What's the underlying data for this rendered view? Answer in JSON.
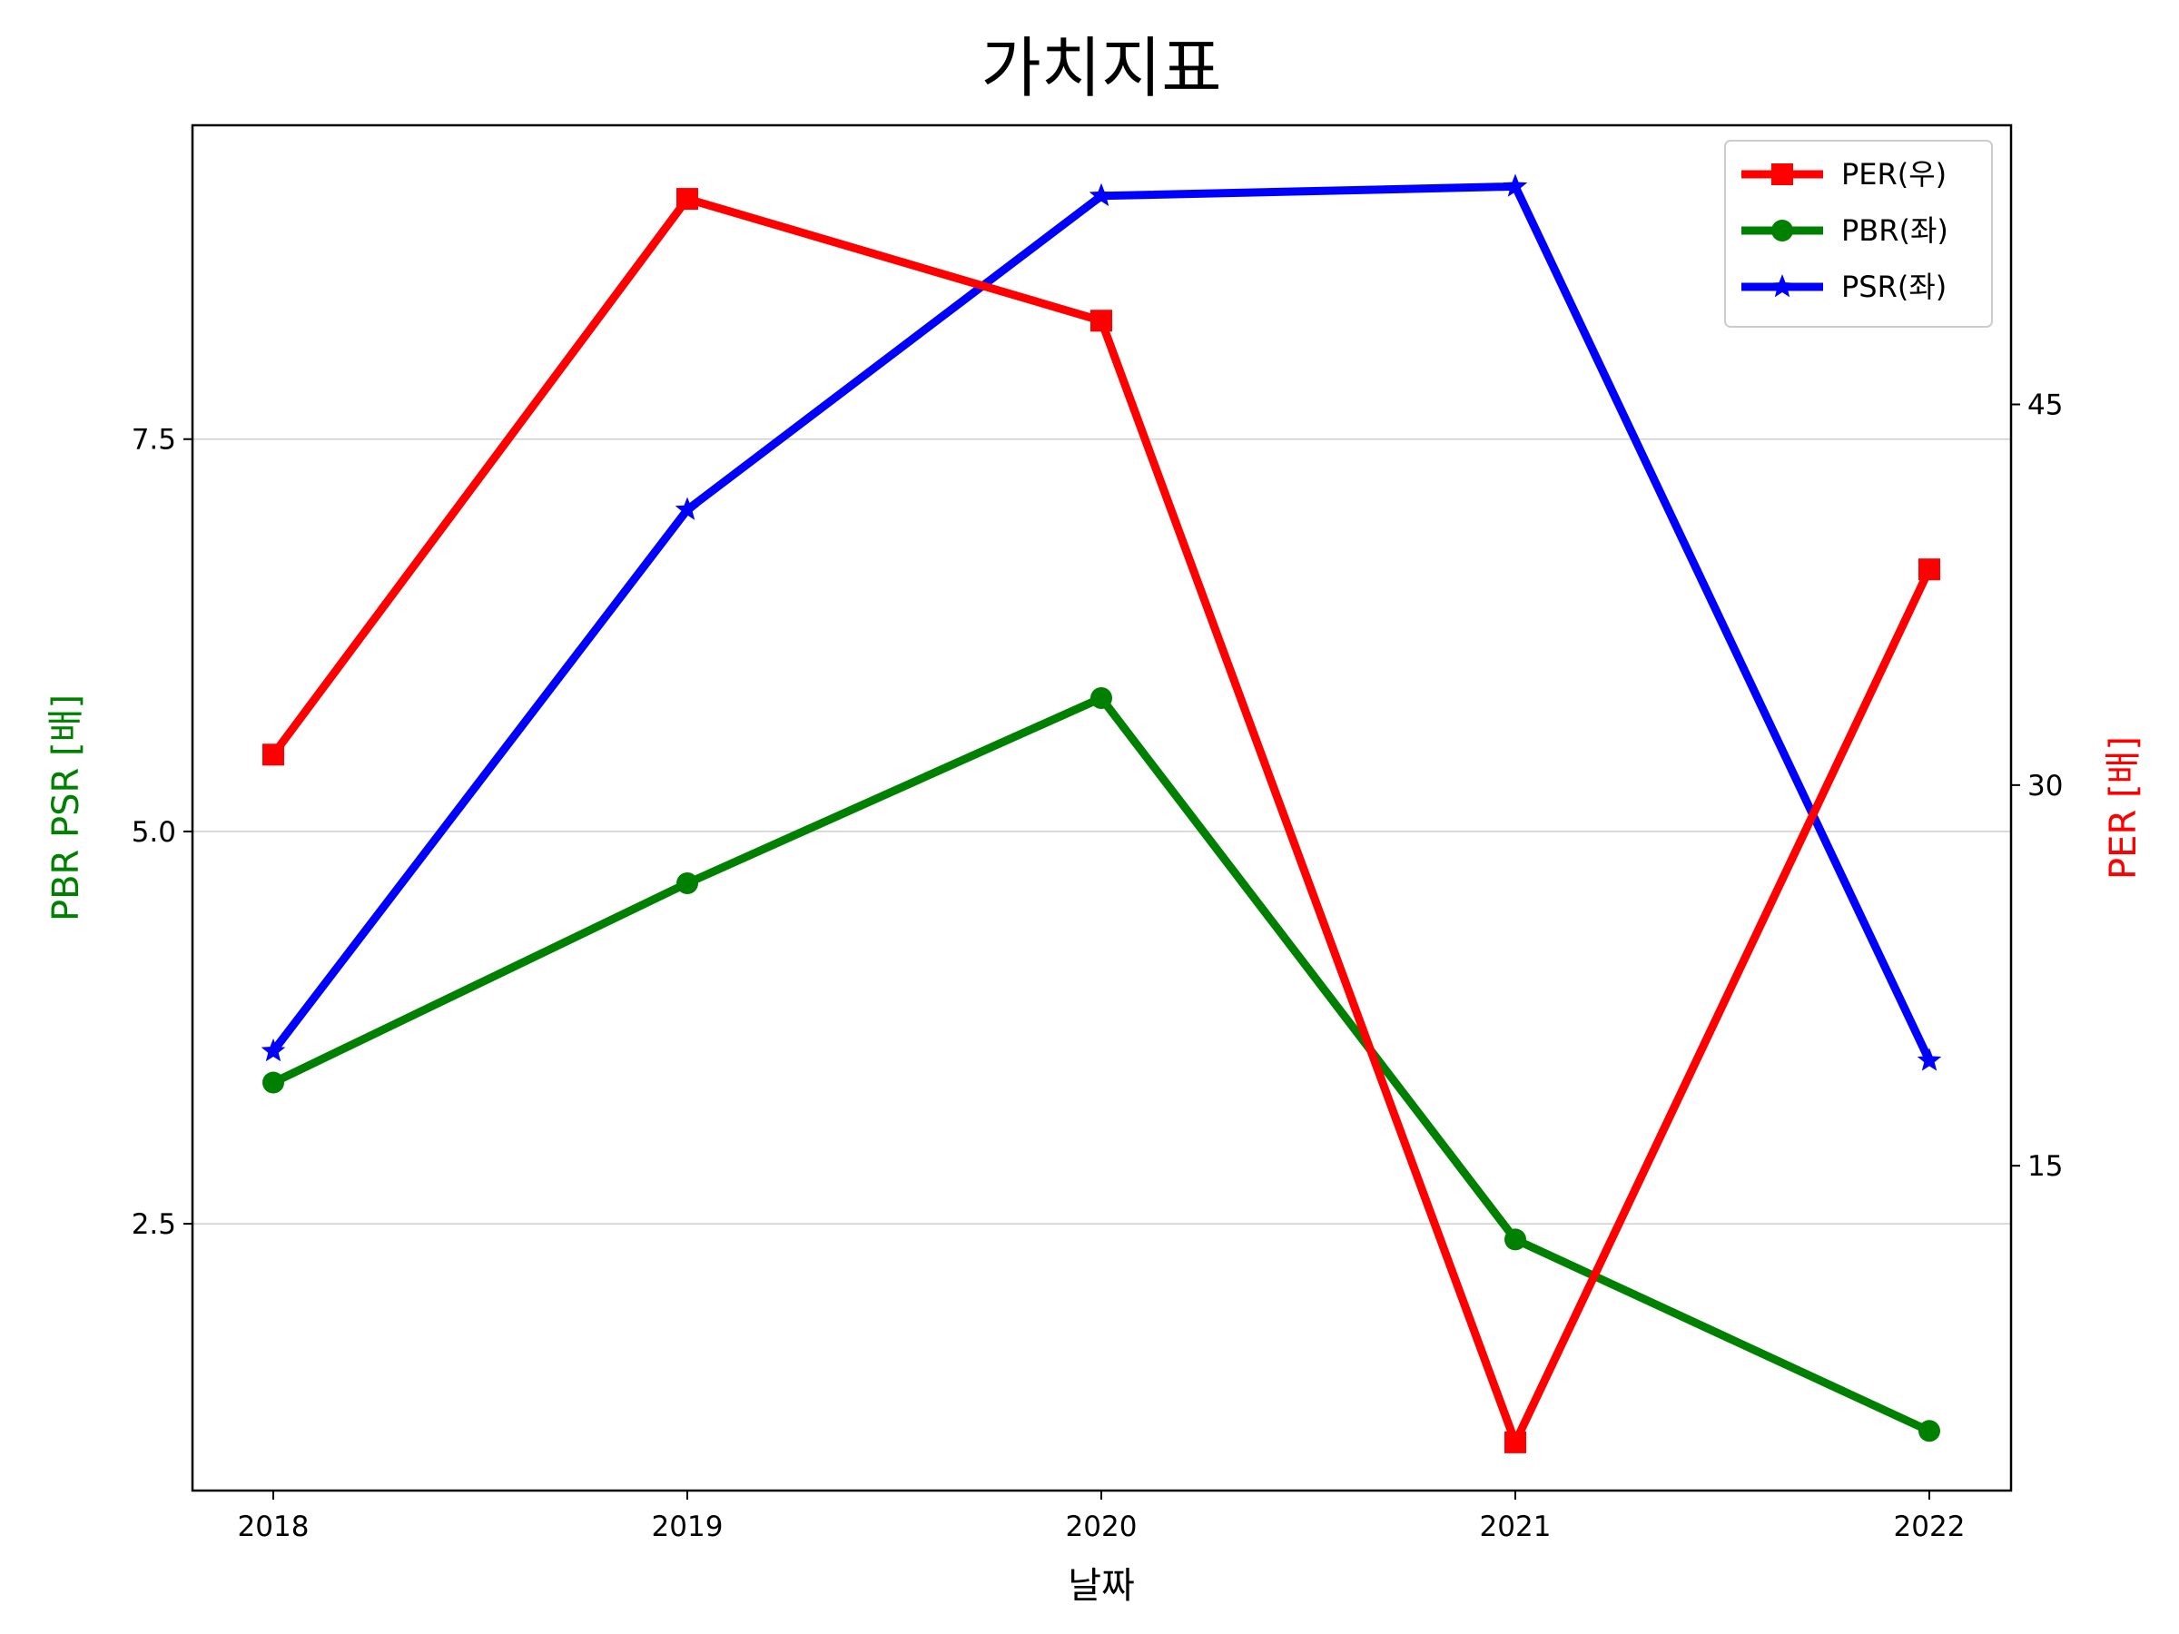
{
  "chart_data": {
    "type": "line",
    "title": "가치지표",
    "xlabel": "날짜",
    "ylabel_left": "PBR PSR [배]",
    "ylabel_right": "PER [배]",
    "categories": [
      "2018",
      "2019",
      "2020",
      "2021",
      "2022"
    ],
    "ylim_left": [
      0.8,
      9.5
    ],
    "yticks_left": [
      2.5,
      5.0,
      7.5
    ],
    "ylim_right": [
      2.2,
      56.0
    ],
    "yticks_right": [
      15,
      30,
      45
    ],
    "grid": "horizontal, left axis",
    "legend_position": "top-right",
    "series": [
      {
        "name": "PER(우)",
        "axis": "right",
        "color": "#ff0000",
        "marker": "square",
        "values": [
          31.2,
          53.1,
          48.3,
          4.1,
          38.5
        ]
      },
      {
        "name": "PBR(좌)",
        "axis": "left",
        "color": "#008000",
        "marker": "circle",
        "values": [
          3.4,
          4.67,
          5.85,
          2.4,
          1.18
        ]
      },
      {
        "name": "PSR(좌)",
        "axis": "left",
        "color": "#0000ff",
        "marker": "star",
        "values": [
          3.6,
          7.05,
          9.05,
          9.11,
          3.54
        ]
      }
    ]
  }
}
